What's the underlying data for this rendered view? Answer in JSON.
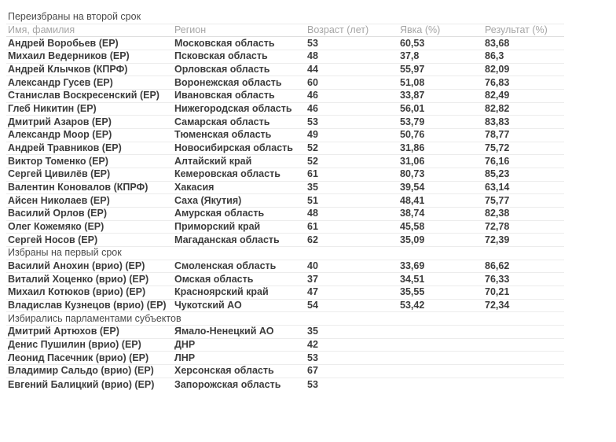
{
  "chart_data": {
    "type": "table",
    "columns": [
      "Имя, фамилия",
      "Регион",
      "Возраст (лет)",
      "Явка (%)",
      "Результат (%)"
    ],
    "sections": [
      {
        "title": "Переизбраны на второй срок",
        "show_headers": true,
        "rows": [
          [
            "Андрей Воробьев (ЕР)",
            "Московская область",
            "53",
            "60,53",
            "83,68"
          ],
          [
            "Михаил Ведерников (ЕР)",
            "Псковская область",
            "48",
            "37,8",
            "86,3"
          ],
          [
            "Андрей Клычков (КПРФ)",
            "Орловская область",
            "44",
            "55,97",
            "82,09"
          ],
          [
            "Александр Гусев (ЕР)",
            "Воронежская область",
            "60",
            "51,08",
            "76,83"
          ],
          [
            "Станислав Воскресенский (ЕР)",
            "Ивановская область",
            "46",
            "33,87",
            "82,49"
          ],
          [
            "Глеб Никитин (ЕР)",
            "Нижегородская область",
            "46",
            "56,01",
            "82,82"
          ],
          [
            "Дмитрий Азаров (ЕР)",
            "Самарская область",
            "53",
            "53,79",
            "83,83"
          ],
          [
            "Александр Моор (ЕР)",
            "Тюменская область",
            "49",
            "50,76",
            "78,77"
          ],
          [
            "Андрей Травников (ЕР)",
            "Новосибирская область",
            "52",
            "31,86",
            "75,72"
          ],
          [
            "Виктор Томенко (ЕР)",
            "Алтайский край",
            "52",
            "31,06",
            "76,16"
          ],
          [
            "Сергей Цивилёв (ЕР)",
            "Кемеровская область",
            "61",
            "80,73",
            "85,23"
          ],
          [
            "Валентин Коновалов (КПРФ)",
            "Хакасия",
            "35",
            "39,54",
            "63,14"
          ],
          [
            "Айсен Николаев (ЕР)",
            "Саха (Якутия)",
            "51",
            "48,41",
            "75,77"
          ],
          [
            "Василий Орлов (ЕР)",
            "Амурская область",
            "48",
            "38,74",
            "82,38"
          ],
          [
            "Олег Кожемяко (ЕР)",
            "Приморский край",
            "61",
            "45,58",
            "72,78"
          ],
          [
            "Сергей Носов (ЕР)",
            "Магаданская область",
            "62",
            "35,09",
            "72,39"
          ]
        ]
      },
      {
        "title": "Избраны на первый срок",
        "show_headers": false,
        "rows": [
          [
            "Василий Анохин (врио) (ЕР)",
            "Смоленская область",
            "40",
            "33,69",
            "86,62"
          ],
          [
            "Виталий Хоценко (врио) (ЕР)",
            "Омская область",
            "37",
            "34,51",
            "76,33"
          ],
          [
            "Михаил Котюков (врио) (ЕР)",
            "Красноярский край",
            "47",
            "35,55",
            "70,21"
          ],
          [
            "Владислав Кузнецов (врио) (ЕР)",
            "Чукотский АО",
            "54",
            "53,42",
            "72,34"
          ]
        ]
      },
      {
        "title": "Избирались парламентами субъектов",
        "show_headers": false,
        "rows": [
          [
            "Дмитрий Артюхов (ЕР)",
            "Ямало-Ненецкий АО",
            "35",
            "",
            ""
          ],
          [
            "Денис Пушилин (врио) (ЕР)",
            "ДНР",
            "42",
            "",
            ""
          ],
          [
            "Леонид Пасечник (врио) (ЕР)",
            "ЛНР",
            "53",
            "",
            ""
          ],
          [
            "Владимир Сальдо (врио) (ЕР)",
            "Херсонская область",
            "67",
            "",
            ""
          ],
          [
            "Евгений Балицкий (врио) (ЕР)",
            "Запорожская область",
            "53",
            "",
            ""
          ]
        ]
      }
    ],
    "colors": {
      "background": "#ffffff",
      "data_text": "#3c3c3c",
      "section_title_text": "#4a4a4a",
      "column_header_text": "#a5a5a5",
      "row_border": "#ececec",
      "header_border": "#dedede"
    }
  }
}
